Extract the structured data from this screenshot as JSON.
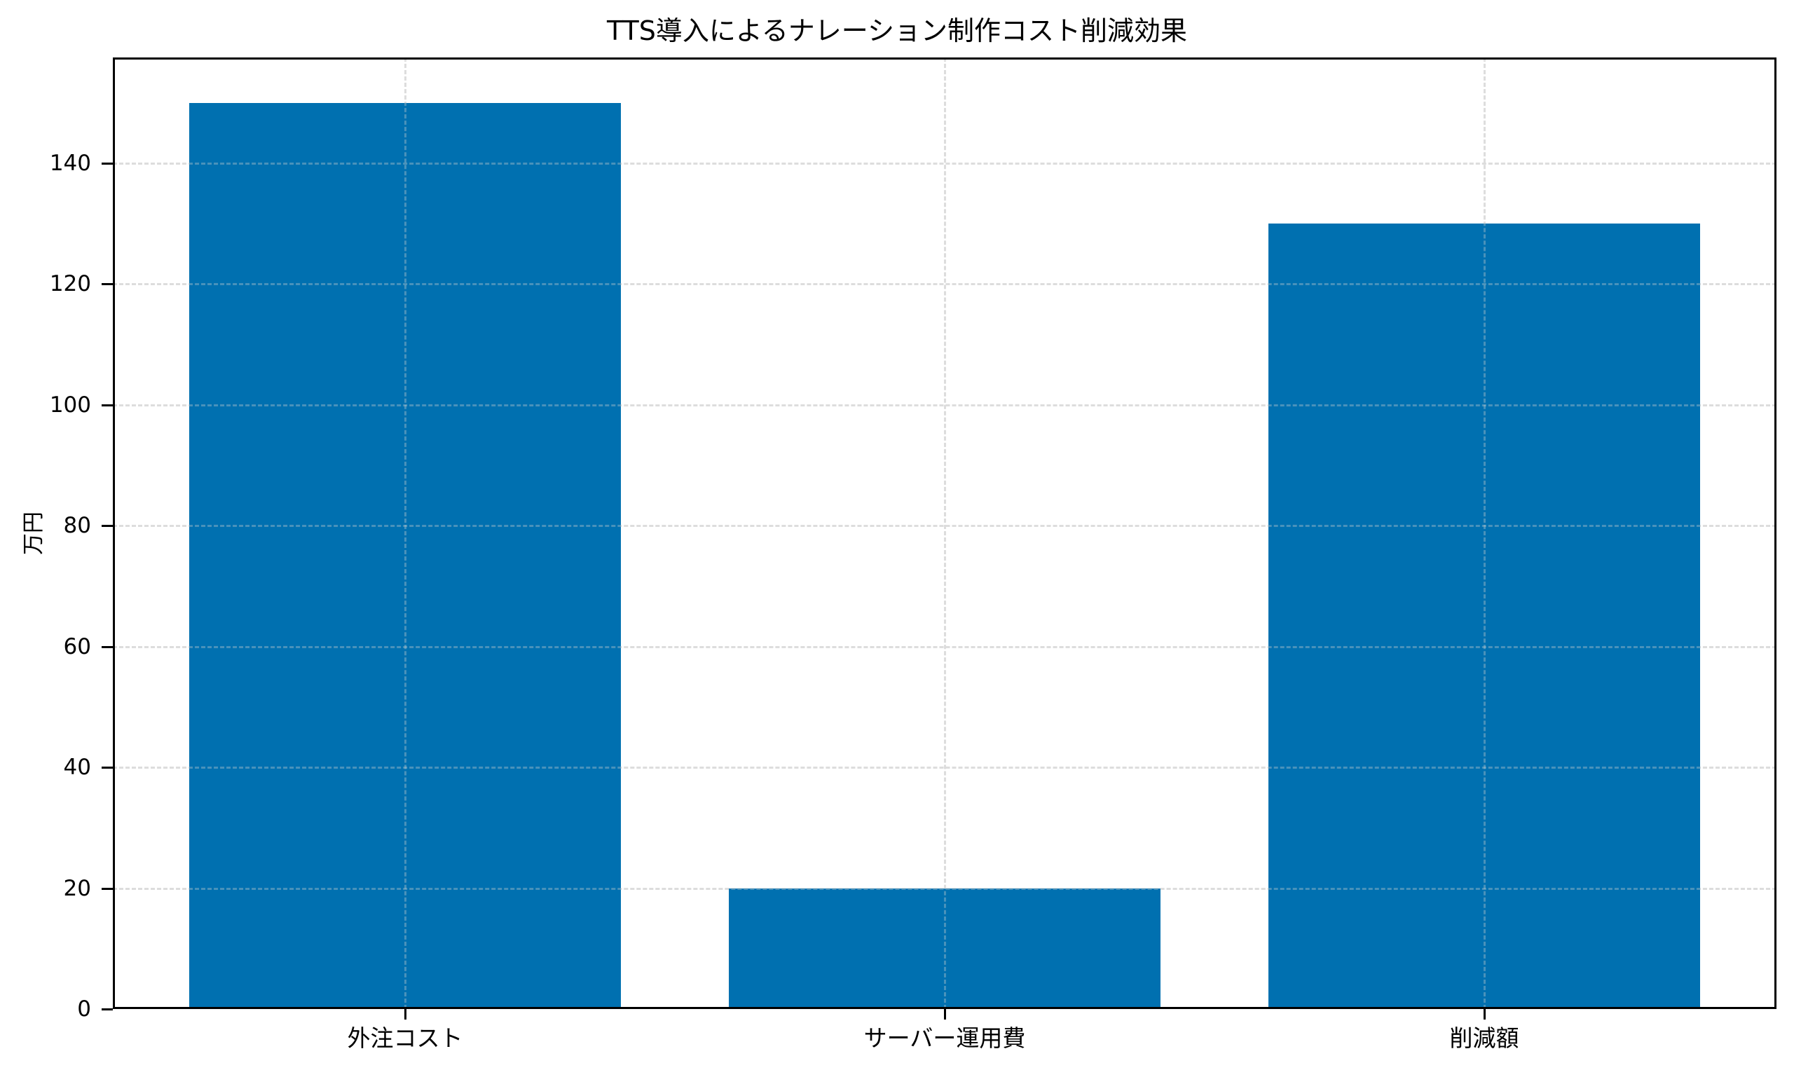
{
  "chart_data": {
    "type": "bar",
    "title": "TTS導入によるナレーション制作コスト削減効果",
    "xlabel": "",
    "ylabel": "万円",
    "categories": [
      "外注コスト",
      "サーバー運用費",
      "削減額"
    ],
    "values": [
      150,
      20,
      130
    ],
    "ylim": [
      0,
      157.5
    ],
    "yticks": [
      0,
      20,
      40,
      60,
      80,
      100,
      120,
      140
    ],
    "grid": true,
    "grid_style": "dashed",
    "legend": null,
    "bar_color": "#0070b0"
  },
  "labels": {
    "title": "TTS導入によるナレーション制作コスト削減効果",
    "ylabel": "万円",
    "xticks": [
      "外注コスト",
      "サーバー運用費",
      "削減額"
    ],
    "yticks": [
      "0",
      "20",
      "40",
      "60",
      "80",
      "100",
      "120",
      "140"
    ]
  }
}
